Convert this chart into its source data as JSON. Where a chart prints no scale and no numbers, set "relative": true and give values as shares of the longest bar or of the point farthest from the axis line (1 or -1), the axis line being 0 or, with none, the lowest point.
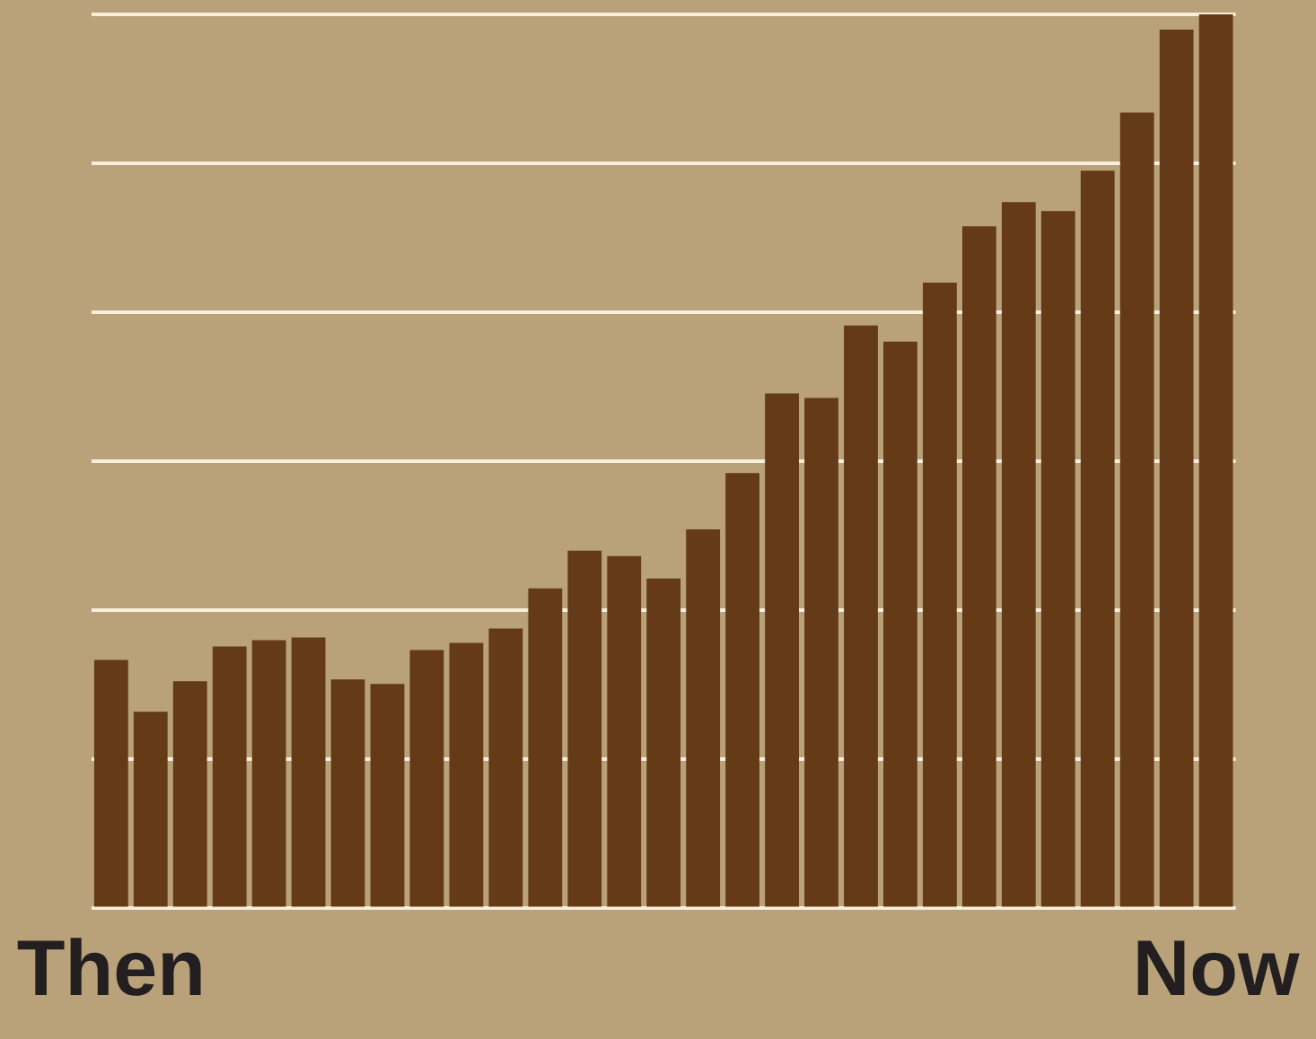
{
  "chart_data": {
    "type": "bar",
    "relative": true,
    "grid": "y",
    "color": "#643a17",
    "categories": [
      "Then",
      null,
      null,
      null,
      null,
      null,
      null,
      null,
      null,
      null,
      null,
      null,
      null,
      null,
      null,
      null,
      null,
      null,
      null,
      null,
      null,
      null,
      null,
      null,
      null,
      null,
      null,
      null,
      "Now"
    ],
    "values": [
      0.278,
      0.22,
      0.254,
      0.293,
      0.3,
      0.303,
      0.256,
      0.251,
      0.289,
      0.297,
      0.313,
      0.358,
      0.4,
      0.394,
      0.369,
      0.424,
      0.487,
      0.576,
      0.571,
      0.652,
      0.634,
      0.7,
      0.763,
      0.79,
      0.78,
      0.825,
      0.89,
      0.983,
      1
    ]
  }
}
